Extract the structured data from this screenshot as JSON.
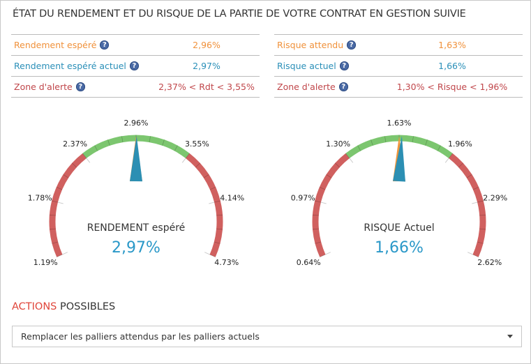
{
  "title": "ÉTAT DU RENDEMENT ET DU RISQUE DE LA PARTIE DE VOTRE CONTRAT EN GESTION SUIVIE",
  "help_icon": "?",
  "rendement_table": [
    {
      "label": "Rendement espéré",
      "value": "2,96%",
      "color": "orange"
    },
    {
      "label": "Rendement espéré actuel",
      "value": "2,97%",
      "color": "blue"
    },
    {
      "label": "Zone d'alerte",
      "value": "2,37% < Rdt < 3,55%",
      "color": "red"
    }
  ],
  "risque_table": [
    {
      "label": "Risque attendu",
      "value": "1,63%",
      "color": "orange"
    },
    {
      "label": "Risque actuel",
      "value": "1,66%",
      "color": "blue"
    },
    {
      "label": "Zone d'alerte",
      "value": "1,30% < Risque < 1,96%",
      "color": "red"
    }
  ],
  "gauges": [
    {
      "title": "RENDEMENT espéré",
      "display_value": "2,97%",
      "min": 1.19,
      "max": 4.73,
      "green": [
        2.37,
        3.55
      ],
      "expected": 2.96,
      "actual": 2.97,
      "tick_labels": [
        "1.19%",
        "1.78%",
        "2.37%",
        "2.96%",
        "3.55%",
        "4.14%",
        "4.73%"
      ]
    },
    {
      "title": "RISQUE Actuel",
      "display_value": "1,66%",
      "min": 0.64,
      "max": 2.62,
      "green": [
        1.3,
        1.96
      ],
      "expected": 1.63,
      "actual": 1.66,
      "tick_labels": [
        "0.64%",
        "0.97%",
        "1.30%",
        "1.63%",
        "1.96%",
        "2.29%",
        "2.62%"
      ]
    }
  ],
  "colors": {
    "green": "#7cc66f",
    "red": "#d0605f",
    "expected_needle": "#f0963c",
    "actual_needle": "#2c8fb3"
  },
  "actions": {
    "title_accent": "ACTIONS",
    "title_rest": " POSSIBLES",
    "selected": "Remplacer les palliers attendus par les palliers actuels"
  }
}
